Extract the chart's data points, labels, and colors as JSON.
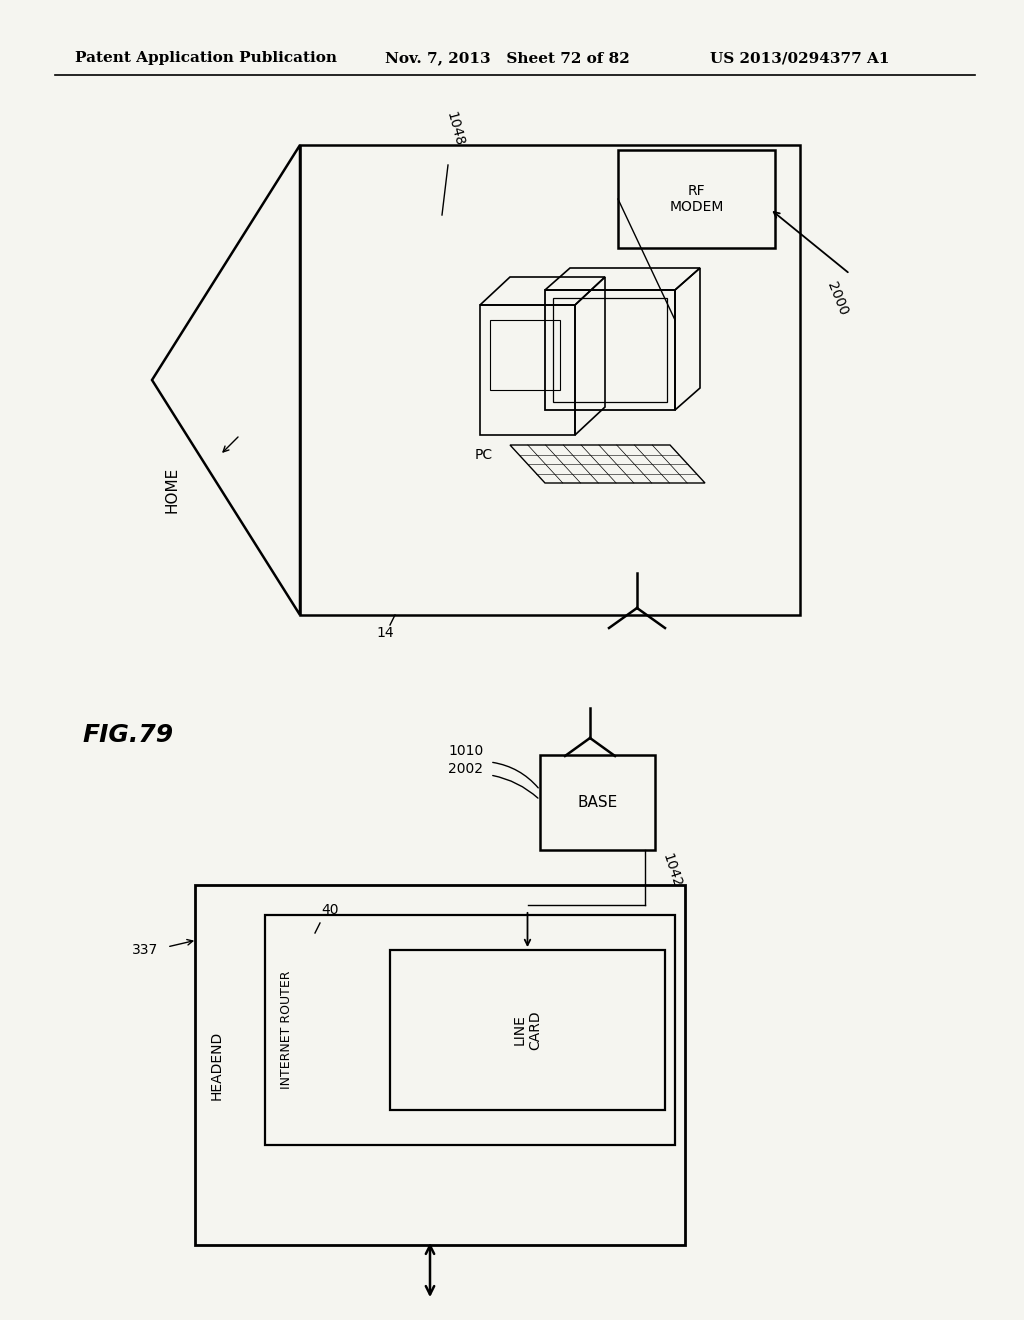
{
  "bg_color": "#f5f5f0",
  "header_left": "Patent Application Publication",
  "header_mid": "Nov. 7, 2013   Sheet 72 of 82",
  "header_right": "US 2013/0294377 A1",
  "fig_label": "FIG.79",
  "header_fontsize": 11,
  "fig_label_fontsize": 18
}
